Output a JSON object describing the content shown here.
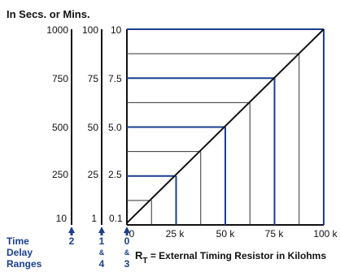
{
  "header": "In Secs. or Mins.",
  "scales": [
    {
      "labels": [
        "1000",
        "750",
        "500",
        "250",
        "10"
      ],
      "range_label": "2"
    },
    {
      "labels": [
        "100",
        "75",
        "50",
        "25",
        "1"
      ],
      "range_label_top": "1",
      "range_label_amp": "&",
      "range_label_bottom": "4"
    },
    {
      "labels": [
        "10",
        "7.5",
        "5.0",
        "2.5",
        "0.1"
      ],
      "range_label_top": "0",
      "range_label_amp": "&",
      "range_label_bottom": "3"
    }
  ],
  "side_labels": [
    "Time",
    "Delay",
    "Ranges"
  ],
  "x_ticks": [
    "0",
    "25 k",
    "50 k",
    "75 k",
    "100 k"
  ],
  "x_label": {
    "prefix": "R",
    "subscript": "T",
    "rest": " = External Timing Resistor in Kilohms"
  },
  "colors": {
    "blue": "#1a3f8f",
    "line": "#111111",
    "grid": "#333333"
  },
  "chart_data": {
    "type": "line",
    "xlabel": "RT = External Timing Resistor in Kilohms",
    "ylabel": "In Secs. or Mins.",
    "x_ticks": [
      "0",
      "25 k",
      "50 k",
      "75 k",
      "100 k"
    ],
    "xlim": [
      0,
      100
    ],
    "ylim": [
      0.1,
      10
    ],
    "series": [
      {
        "x": [
          0,
          100
        ],
        "y": [
          0.1,
          10
        ]
      }
    ],
    "highlighted_points": [
      {
        "x": 25,
        "y": 2.5
      },
      {
        "x": 50,
        "y": 5.0
      },
      {
        "x": 75,
        "y": 7.5
      },
      {
        "x": 100,
        "y": 10
      }
    ],
    "gridlines_y": [
      1.25,
      3.75,
      6.25,
      8.75
    ]
  }
}
